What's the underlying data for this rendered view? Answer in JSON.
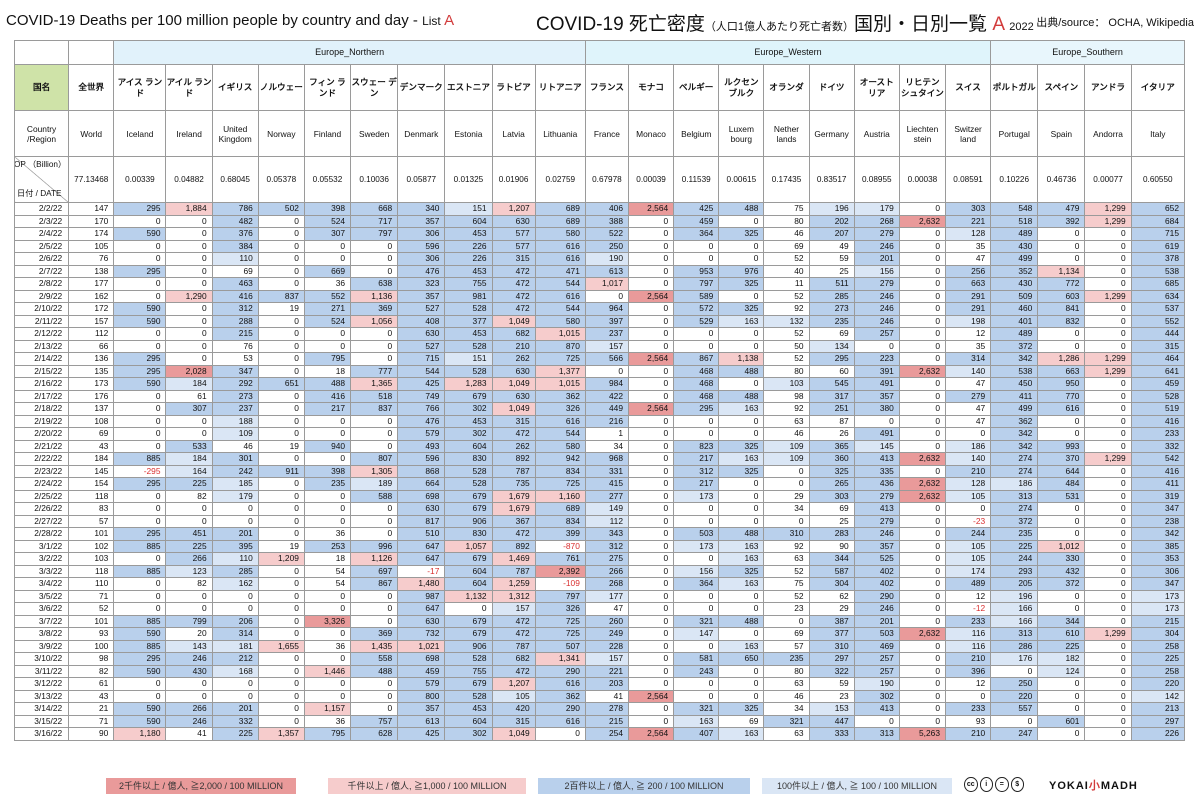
{
  "title": {
    "en_main": "COVID-19 Deaths per 100 million people by country and day - ",
    "en_list": "List ",
    "en_letter": "A",
    "jp_main": "COVID-19 死亡密度",
    "jp_sub": "（人口1億人あたり死亡者数）",
    "jp_rest": "国別・日別一覧 ",
    "jp_letter": "A",
    "year": "2022",
    "source": "出典/source： OCHA, Wikipedia"
  },
  "colors": {
    "high2000": "#e99a9a",
    "high1000": "#f6cccc",
    "mid200": "#b9d0ec",
    "low100": "#dae6f5",
    "accent": "#d23c3c"
  },
  "regions": [
    {
      "name": "Europe_Northern",
      "span": 10
    },
    {
      "name": "Europe_Western",
      "span": 9
    },
    {
      "name": "Europe_Southern",
      "span": 4
    }
  ],
  "labels": {
    "jp_header": "国名",
    "en_header": "Country /Region",
    "pop_header_a": "人口（億人） POP （Billion）",
    "pop_header_b": "日付 / DATE"
  },
  "columns": [
    {
      "jp": "全世界",
      "en": "World",
      "pop": "77.13468"
    },
    {
      "jp": "アイス ランド",
      "en": "Iceland",
      "pop": "0.00339"
    },
    {
      "jp": "アイル ランド",
      "en": "Ireland",
      "pop": "0.04882"
    },
    {
      "jp": "イギリス",
      "en": "United Kingdom",
      "pop": "0.68045"
    },
    {
      "jp": "ノルウェー",
      "en": "Norway",
      "pop": "0.05378"
    },
    {
      "jp": "フィン ランド",
      "en": "Finland",
      "pop": "0.05532"
    },
    {
      "jp": "スウェー デン",
      "en": "Sweden",
      "pop": "0.10036"
    },
    {
      "jp": "デンマーク",
      "en": "Denmark",
      "pop": "0.05877"
    },
    {
      "jp": "エストニア",
      "en": "Estonia",
      "pop": "0.01325"
    },
    {
      "jp": "ラトビア",
      "en": "Latvia",
      "pop": "0.01906"
    },
    {
      "jp": "リトアニア",
      "en": "Lithuania",
      "pop": "0.02759"
    },
    {
      "jp": "フランス",
      "en": "France",
      "pop": "0.67978"
    },
    {
      "jp": "モナコ",
      "en": "Monaco",
      "pop": "0.00039"
    },
    {
      "jp": "ベルギー",
      "en": "Belgium",
      "pop": "0.11539"
    },
    {
      "jp": "ルクセン ブルク",
      "en": "Luxem bourg",
      "pop": "0.00615"
    },
    {
      "jp": "オランダ",
      "en": "Nether lands",
      "pop": "0.17435"
    },
    {
      "jp": "ドイツ",
      "en": "Germany",
      "pop": "0.83517"
    },
    {
      "jp": "オースト リア",
      "en": "Austria",
      "pop": "0.08955"
    },
    {
      "jp": "リヒテン シュタイン",
      "en": "Liechten stein",
      "pop": "0.00038"
    },
    {
      "jp": "スイス",
      "en": "Switzer land",
      "pop": "0.08591"
    },
    {
      "jp": "ポルトガル",
      "en": "Portugal",
      "pop": "0.10226"
    },
    {
      "jp": "スペイン",
      "en": "Spain",
      "pop": "0.46736"
    },
    {
      "jp": "アンドラ",
      "en": "Andorra",
      "pop": "0.00077"
    },
    {
      "jp": "イタリア",
      "en": "Italy",
      "pop": "0.60550"
    }
  ],
  "rows": [
    [
      "2/2/22",
      "147",
      "295",
      "1,884",
      "786",
      "502",
      "398",
      "668",
      "340",
      "151",
      "1,207",
      "689",
      "406",
      "2,564",
      "425",
      "488",
      "75",
      "196",
      "179",
      "0",
      "303",
      "548",
      "479",
      "1,299",
      "652"
    ],
    [
      "2/3/22",
      "170",
      "0",
      "0",
      "482",
      "0",
      "524",
      "717",
      "357",
      "604",
      "630",
      "689",
      "388",
      "0",
      "459",
      "0",
      "80",
      "202",
      "268",
      "2,632",
      "221",
      "518",
      "392",
      "1,299",
      "684"
    ],
    [
      "2/4/22",
      "174",
      "590",
      "0",
      "376",
      "0",
      "307",
      "797",
      "306",
      "453",
      "577",
      "580",
      "522",
      "0",
      "364",
      "325",
      "46",
      "207",
      "279",
      "0",
      "128",
      "489",
      "0",
      "0",
      "715"
    ],
    [
      "2/5/22",
      "105",
      "0",
      "0",
      "384",
      "0",
      "0",
      "0",
      "596",
      "226",
      "577",
      "616",
      "250",
      "0",
      "0",
      "0",
      "69",
      "49",
      "246",
      "0",
      "35",
      "430",
      "0",
      "0",
      "619"
    ],
    [
      "2/6/22",
      "76",
      "0",
      "0",
      "110",
      "0",
      "0",
      "0",
      "306",
      "226",
      "315",
      "616",
      "190",
      "0",
      "0",
      "0",
      "52",
      "59",
      "201",
      "0",
      "47",
      "499",
      "0",
      "0",
      "378"
    ],
    [
      "2/7/22",
      "138",
      "295",
      "0",
      "69",
      "0",
      "669",
      "0",
      "476",
      "453",
      "472",
      "471",
      "613",
      "0",
      "953",
      "976",
      "40",
      "25",
      "156",
      "0",
      "256",
      "352",
      "1,134",
      "0",
      "538"
    ],
    [
      "2/8/22",
      "177",
      "0",
      "0",
      "463",
      "0",
      "36",
      "638",
      "323",
      "755",
      "472",
      "544",
      "1,017",
      "0",
      "797",
      "325",
      "11",
      "511",
      "279",
      "0",
      "663",
      "430",
      "772",
      "0",
      "685"
    ],
    [
      "2/9/22",
      "162",
      "0",
      "1,290",
      "416",
      "837",
      "552",
      "1,136",
      "357",
      "981",
      "472",
      "616",
      "0",
      "2,564",
      "589",
      "0",
      "52",
      "285",
      "246",
      "0",
      "291",
      "509",
      "603",
      "1,299",
      "634"
    ],
    [
      "2/10/22",
      "172",
      "590",
      "0",
      "312",
      "19",
      "271",
      "369",
      "527",
      "528",
      "472",
      "544",
      "964",
      "0",
      "572",
      "325",
      "92",
      "273",
      "246",
      "0",
      "291",
      "460",
      "841",
      "0",
      "537"
    ],
    [
      "2/11/22",
      "157",
      "590",
      "0",
      "288",
      "0",
      "524",
      "1,056",
      "408",
      "377",
      "1,049",
      "580",
      "397",
      "0",
      "529",
      "163",
      "132",
      "235",
      "246",
      "0",
      "198",
      "401",
      "832",
      "0",
      "552"
    ],
    [
      "2/12/22",
      "112",
      "0",
      "0",
      "215",
      "0",
      "0",
      "0",
      "630",
      "453",
      "682",
      "1,015",
      "237",
      "0",
      "0",
      "0",
      "52",
      "69",
      "257",
      "0",
      "12",
      "489",
      "0",
      "0",
      "444"
    ],
    [
      "2/13/22",
      "66",
      "0",
      "0",
      "76",
      "0",
      "0",
      "0",
      "527",
      "528",
      "210",
      "870",
      "157",
      "0",
      "0",
      "0",
      "50",
      "134",
      "0",
      "0",
      "35",
      "372",
      "0",
      "0",
      "315"
    ],
    [
      "2/14/22",
      "136",
      "295",
      "0",
      "53",
      "0",
      "795",
      "0",
      "715",
      "151",
      "262",
      "725",
      "566",
      "2,564",
      "867",
      "1,138",
      "52",
      "295",
      "223",
      "0",
      "314",
      "342",
      "1,286",
      "1,299",
      "464"
    ],
    [
      "2/15/22",
      "135",
      "295",
      "2,028",
      "347",
      "0",
      "18",
      "777",
      "544",
      "528",
      "630",
      "1,377",
      "0",
      "0",
      "468",
      "488",
      "80",
      "60",
      "391",
      "2,632",
      "140",
      "538",
      "663",
      "1,299",
      "641"
    ],
    [
      "2/16/22",
      "173",
      "590",
      "184",
      "292",
      "651",
      "488",
      "1,365",
      "425",
      "1,283",
      "1,049",
      "1,015",
      "984",
      "0",
      "468",
      "0",
      "103",
      "545",
      "491",
      "0",
      "47",
      "450",
      "950",
      "0",
      "459"
    ],
    [
      "2/17/22",
      "176",
      "0",
      "61",
      "273",
      "0",
      "416",
      "518",
      "749",
      "679",
      "630",
      "362",
      "422",
      "0",
      "468",
      "488",
      "98",
      "317",
      "357",
      "0",
      "279",
      "411",
      "770",
      "0",
      "528"
    ],
    [
      "2/18/22",
      "137",
      "0",
      "307",
      "237",
      "0",
      "217",
      "837",
      "766",
      "302",
      "1,049",
      "326",
      "449",
      "2,564",
      "295",
      "163",
      "92",
      "251",
      "380",
      "0",
      "47",
      "499",
      "616",
      "0",
      "519"
    ],
    [
      "2/19/22",
      "108",
      "0",
      "0",
      "188",
      "0",
      "0",
      "0",
      "476",
      "453",
      "315",
      "616",
      "216",
      "0",
      "0",
      "0",
      "63",
      "87",
      "0",
      "0",
      "47",
      "362",
      "0",
      "0",
      "416"
    ],
    [
      "2/20/22",
      "69",
      "0",
      "0",
      "109",
      "0",
      "0",
      "0",
      "579",
      "302",
      "472",
      "544",
      "1",
      "0",
      "0",
      "0",
      "46",
      "26",
      "491",
      "0",
      "0",
      "342",
      "0",
      "0",
      "233"
    ],
    [
      "2/21/22",
      "43",
      "0",
      "533",
      "46",
      "19",
      "940",
      "0",
      "493",
      "604",
      "262",
      "580",
      "34",
      "0",
      "823",
      "325",
      "109",
      "365",
      "145",
      "0",
      "186",
      "342",
      "993",
      "0",
      "332"
    ],
    [
      "2/22/22",
      "184",
      "885",
      "184",
      "301",
      "0",
      "0",
      "807",
      "596",
      "830",
      "892",
      "942",
      "968",
      "0",
      "217",
      "163",
      "109",
      "360",
      "413",
      "2,632",
      "140",
      "274",
      "370",
      "1,299",
      "542"
    ],
    [
      "2/23/22",
      "145",
      "-295",
      "164",
      "242",
      "911",
      "398",
      "1,305",
      "868",
      "528",
      "787",
      "834",
      "331",
      "0",
      "312",
      "325",
      "0",
      "325",
      "335",
      "0",
      "210",
      "274",
      "644",
      "0",
      "416"
    ],
    [
      "2/24/22",
      "154",
      "295",
      "225",
      "185",
      "0",
      "235",
      "189",
      "664",
      "528",
      "735",
      "725",
      "415",
      "0",
      "217",
      "0",
      "0",
      "265",
      "436",
      "2,632",
      "128",
      "186",
      "484",
      "0",
      "411"
    ],
    [
      "2/25/22",
      "118",
      "0",
      "82",
      "179",
      "0",
      "0",
      "588",
      "698",
      "679",
      "1,679",
      "1,160",
      "277",
      "0",
      "173",
      "0",
      "29",
      "303",
      "279",
      "2,632",
      "105",
      "313",
      "531",
      "0",
      "319"
    ],
    [
      "2/26/22",
      "83",
      "0",
      "0",
      "0",
      "0",
      "0",
      "0",
      "630",
      "679",
      "1,679",
      "689",
      "149",
      "0",
      "0",
      "0",
      "34",
      "69",
      "413",
      "0",
      "0",
      "274",
      "0",
      "0",
      "347"
    ],
    [
      "2/27/22",
      "57",
      "0",
      "0",
      "0",
      "0",
      "0",
      "0",
      "817",
      "906",
      "367",
      "834",
      "112",
      "0",
      "0",
      "0",
      "0",
      "25",
      "279",
      "0",
      "-23",
      "372",
      "0",
      "0",
      "238"
    ],
    [
      "2/28/22",
      "101",
      "295",
      "451",
      "201",
      "0",
      "36",
      "0",
      "510",
      "830",
      "472",
      "399",
      "343",
      "0",
      "503",
      "488",
      "310",
      "283",
      "246",
      "0",
      "244",
      "235",
      "0",
      "0",
      "342"
    ],
    [
      "3/1/22",
      "102",
      "885",
      "225",
      "395",
      "19",
      "253",
      "996",
      "647",
      "1,057",
      "892",
      "-870",
      "312",
      "0",
      "173",
      "163",
      "92",
      "90",
      "357",
      "0",
      "105",
      "225",
      "1,012",
      "0",
      "385"
    ],
    [
      "3/2/22",
      "103",
      "0",
      "266",
      "110",
      "1,209",
      "18",
      "1,126",
      "647",
      "679",
      "1,469",
      "761",
      "275",
      "0",
      "0",
      "163",
      "63",
      "344",
      "525",
      "0",
      "105",
      "244",
      "330",
      "0",
      "353"
    ],
    [
      "3/3/22",
      "118",
      "885",
      "123",
      "285",
      "0",
      "54",
      "697",
      "-17",
      "604",
      "787",
      "2,392",
      "266",
      "0",
      "156",
      "325",
      "52",
      "587",
      "402",
      "0",
      "174",
      "293",
      "432",
      "0",
      "306"
    ],
    [
      "3/4/22",
      "110",
      "0",
      "82",
      "162",
      "0",
      "54",
      "867",
      "1,480",
      "604",
      "1,259",
      "-109",
      "268",
      "0",
      "364",
      "163",
      "75",
      "304",
      "402",
      "0",
      "489",
      "205",
      "372",
      "0",
      "347"
    ],
    [
      "3/5/22",
      "71",
      "0",
      "0",
      "0",
      "0",
      "0",
      "0",
      "987",
      "1,132",
      "1,312",
      "797",
      "177",
      "0",
      "0",
      "0",
      "52",
      "62",
      "290",
      "0",
      "12",
      "196",
      "0",
      "0",
      "173"
    ],
    [
      "3/6/22",
      "52",
      "0",
      "0",
      "0",
      "0",
      "0",
      "0",
      "647",
      "0",
      "157",
      "326",
      "47",
      "0",
      "0",
      "0",
      "23",
      "29",
      "246",
      "0",
      "-12",
      "166",
      "0",
      "0",
      "173"
    ],
    [
      "3/7/22",
      "101",
      "885",
      "799",
      "206",
      "0",
      "3,326",
      "0",
      "630",
      "679",
      "472",
      "725",
      "260",
      "0",
      "321",
      "488",
      "0",
      "387",
      "201",
      "0",
      "233",
      "166",
      "344",
      "0",
      "215"
    ],
    [
      "3/8/22",
      "93",
      "590",
      "20",
      "314",
      "0",
      "0",
      "369",
      "732",
      "679",
      "472",
      "725",
      "249",
      "0",
      "147",
      "0",
      "69",
      "377",
      "503",
      "2,632",
      "116",
      "313",
      "610",
      "1,299",
      "304"
    ],
    [
      "3/9/22",
      "100",
      "885",
      "143",
      "181",
      "1,655",
      "36",
      "1,435",
      "1,021",
      "906",
      "787",
      "507",
      "228",
      "0",
      "0",
      "163",
      "57",
      "310",
      "469",
      "0",
      "116",
      "286",
      "225",
      "0",
      "258"
    ],
    [
      "3/10/22",
      "98",
      "295",
      "246",
      "212",
      "0",
      "0",
      "558",
      "698",
      "528",
      "682",
      "1,341",
      "157",
      "0",
      "581",
      "650",
      "235",
      "297",
      "257",
      "0",
      "210",
      "176",
      "182",
      "0",
      "225"
    ],
    [
      "3/11/22",
      "82",
      "590",
      "430",
      "168",
      "0",
      "1,446",
      "488",
      "459",
      "755",
      "472",
      "290",
      "221",
      "0",
      "243",
      "0",
      "80",
      "322",
      "257",
      "0",
      "396",
      "0",
      "124",
      "0",
      "258"
    ],
    [
      "3/12/22",
      "61",
      "0",
      "0",
      "0",
      "0",
      "0",
      "0",
      "579",
      "679",
      "1,207",
      "616",
      "203",
      "0",
      "0",
      "0",
      "63",
      "59",
      "190",
      "0",
      "12",
      "250",
      "0",
      "0",
      "220"
    ],
    [
      "3/13/22",
      "43",
      "0",
      "0",
      "0",
      "0",
      "0",
      "0",
      "800",
      "528",
      "105",
      "362",
      "41",
      "2,564",
      "0",
      "0",
      "46",
      "23",
      "302",
      "0",
      "0",
      "220",
      "0",
      "0",
      "142"
    ],
    [
      "3/14/22",
      "21",
      "590",
      "266",
      "201",
      "0",
      "1,157",
      "0",
      "357",
      "453",
      "420",
      "290",
      "278",
      "0",
      "321",
      "325",
      "34",
      "153",
      "413",
      "0",
      "233",
      "557",
      "0",
      "0",
      "213"
    ],
    [
      "3/15/22",
      "71",
      "590",
      "246",
      "332",
      "0",
      "36",
      "757",
      "613",
      "604",
      "315",
      "616",
      "215",
      "0",
      "163",
      "69",
      "321",
      "447",
      "0",
      "0",
      "93",
      "0",
      "601",
      "0",
      "297"
    ],
    [
      "3/16/22",
      "90",
      "1,180",
      "41",
      "225",
      "1,357",
      "795",
      "628",
      "425",
      "302",
      "1,049",
      "0",
      "254",
      "2,564",
      "407",
      "163",
      "63",
      "333",
      "313",
      "5,263",
      "210",
      "247",
      "0",
      "0",
      "226"
    ]
  ],
  "legend": [
    {
      "label": "2千件以上 / 億人, ≧2,000 / 100 MILLION",
      "color": "#e99a9a"
    },
    {
      "label": "千件以上 / 億人, ≧1,000 / 100 MILLION",
      "color": "#f6cccc"
    },
    {
      "label": "2百件以上 / 億人, ≧ 200 / 100 MILLION",
      "color": "#b9d0ec"
    },
    {
      "label": "100件以上 / 億人, ≧ 100 / 100 MILLION",
      "color": "#dae6f5"
    }
  ],
  "cc_icons": [
    "cc-icon",
    "by-icon",
    "nd-icon",
    "nc-icon"
  ],
  "cc_glyphs": [
    "cc",
    "i",
    "=",
    "$"
  ],
  "logo": {
    "pre": "YOKAI",
    "mid": "小",
    "post": "MADH"
  }
}
